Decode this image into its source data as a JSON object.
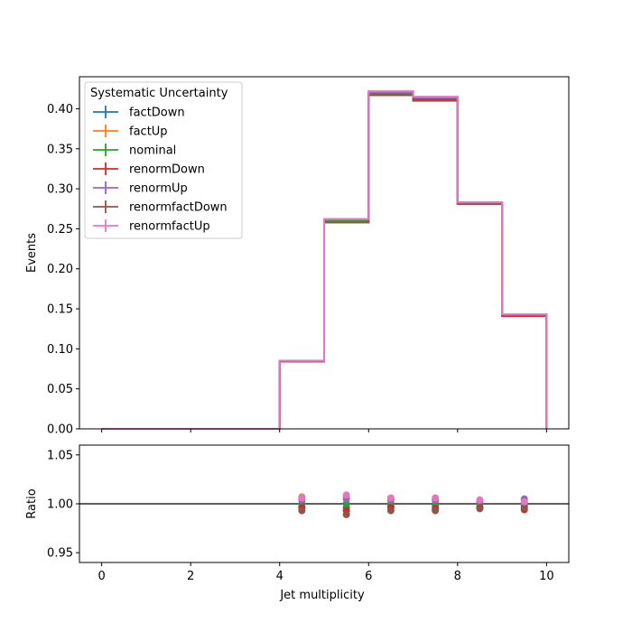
{
  "chart_data": [
    {
      "type": "line",
      "drawstyle": "steps",
      "bin_edges": [
        0,
        1,
        2,
        3,
        4,
        5,
        6,
        7,
        8,
        9,
        10
      ],
      "xlim": [
        -0.5,
        10.5
      ],
      "ylim": [
        0,
        0.44
      ],
      "xticks": [
        0,
        2,
        4,
        6,
        8,
        10
      ],
      "yticks": [
        0.0,
        0.05,
        0.1,
        0.15,
        0.2,
        0.25,
        0.3,
        0.35,
        0.4
      ],
      "ytick_labels": [
        "0.00",
        "0.05",
        "0.10",
        "0.15",
        "0.20",
        "0.25",
        "0.30",
        "0.35",
        "0.40"
      ],
      "xlabel": "",
      "ylabel": "Events",
      "legend": {
        "title": "Systematic Uncertainty",
        "loc": "upper left"
      },
      "series": [
        {
          "name": "factDown",
          "color": "#1f77b4",
          "values": [
            0,
            0,
            0,
            0,
            0.084,
            0.259,
            0.418,
            0.412,
            0.282,
            0.141
          ]
        },
        {
          "name": "factUp",
          "color": "#ff7f0e",
          "values": [
            0,
            0,
            0,
            0,
            0.085,
            0.262,
            0.421,
            0.414,
            0.283,
            0.142
          ]
        },
        {
          "name": "nominal",
          "color": "#2ca02c",
          "values": [
            0,
            0,
            0,
            0,
            0.084,
            0.26,
            0.419,
            0.412,
            0.282,
            0.142
          ]
        },
        {
          "name": "renormDown",
          "color": "#d62728",
          "values": [
            0,
            0,
            0,
            0,
            0.084,
            0.258,
            0.417,
            0.411,
            0.281,
            0.141
          ]
        },
        {
          "name": "renormUp",
          "color": "#9467bd",
          "values": [
            0,
            0,
            0,
            0,
            0.085,
            0.262,
            0.421,
            0.414,
            0.283,
            0.143
          ]
        },
        {
          "name": "renormfactDown",
          "color": "#8c564b",
          "values": [
            0,
            0,
            0,
            0,
            0.084,
            0.258,
            0.417,
            0.41,
            0.281,
            0.142
          ]
        },
        {
          "name": "renormfactUp",
          "color": "#e377c2",
          "values": [
            0,
            0,
            0,
            0,
            0.085,
            0.262,
            0.422,
            0.415,
            0.283,
            0.143
          ]
        }
      ]
    },
    {
      "type": "scatter",
      "x": [
        4.5,
        5.5,
        6.5,
        7.5,
        8.5,
        9.5
      ],
      "xlim": [
        -0.5,
        10.5
      ],
      "ylim": [
        0.94,
        1.06
      ],
      "xticks": [
        0,
        2,
        4,
        6,
        8,
        10
      ],
      "xtick_labels": [
        "0",
        "2",
        "4",
        "6",
        "8",
        "10"
      ],
      "yticks": [
        0.95,
        1.0,
        1.05
      ],
      "ytick_labels": [
        "0.95",
        "1.00",
        "1.05"
      ],
      "xlabel": "Jet multiplicity",
      "ylabel": "Ratio",
      "reference_line": 1.0,
      "series": [
        {
          "name": "factDown",
          "color": "#1f77b4",
          "values": [
            0.997,
            0.996,
            0.998,
            0.998,
            0.997,
            0.998
          ]
        },
        {
          "name": "factUp",
          "color": "#ff7f0e",
          "values": [
            1.007,
            1.007,
            1.005,
            1.004,
            1.003,
            1.001
          ]
        },
        {
          "name": "nominal",
          "color": "#2ca02c",
          "values": [
            1.0,
            1.0,
            1.0,
            1.0,
            1.0,
            1.0
          ]
        },
        {
          "name": "renormDown",
          "color": "#d62728",
          "values": [
            0.996,
            0.993,
            0.996,
            0.995,
            0.996,
            0.994
          ]
        },
        {
          "name": "renormUp",
          "color": "#9467bd",
          "values": [
            1.004,
            1.005,
            1.004,
            1.004,
            1.003,
            1.005
          ]
        },
        {
          "name": "renormfactDown",
          "color": "#8c564b",
          "values": [
            0.993,
            0.989,
            0.993,
            0.993,
            0.995,
            0.996
          ]
        },
        {
          "name": "renormfactUp",
          "color": "#e377c2",
          "values": [
            1.006,
            1.009,
            1.006,
            1.006,
            1.004,
            1.002
          ]
        }
      ]
    }
  ]
}
